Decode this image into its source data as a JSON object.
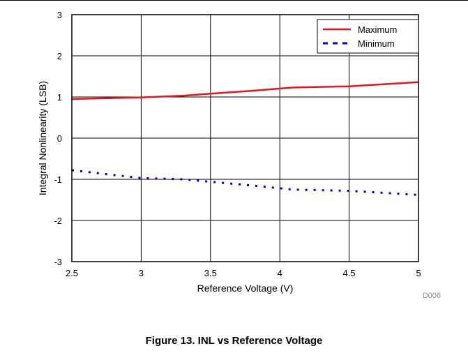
{
  "caption": "Figure 13. INL vs Reference Voltage",
  "chart_data": {
    "type": "line",
    "xlabel": "Reference Voltage (V)",
    "ylabel": "Integral Nonlinearity (LSB)",
    "xlim": [
      2.5,
      5
    ],
    "ylim": [
      -3,
      3
    ],
    "xticks": [
      2.5,
      3,
      3.5,
      4,
      4.5,
      5
    ],
    "xtick_labels": [
      "2.5",
      "3",
      "3.5",
      "4",
      "4.5",
      "5"
    ],
    "yticks": [
      -3,
      -2,
      -1,
      0,
      1,
      2,
      3
    ],
    "ytick_labels": [
      "-3",
      "-2",
      "-1",
      "0",
      "1",
      "2",
      "3"
    ],
    "grid": true,
    "legend_position": "top-right",
    "series": [
      {
        "name": "Maximum",
        "color": "#e8141b",
        "style": "solid",
        "x": [
          2.5,
          3.0,
          3.3,
          3.5,
          3.8,
          4.1,
          4.5,
          5.0
        ],
        "y": [
          0.95,
          0.99,
          1.03,
          1.08,
          1.15,
          1.23,
          1.26,
          1.36
        ]
      },
      {
        "name": "Minimum",
        "color": "#0000cc",
        "style": "dotted",
        "x": [
          2.5,
          3.0,
          3.3,
          3.5,
          3.8,
          4.1,
          4.5,
          5.0
        ],
        "y": [
          -0.78,
          -0.97,
          -1.0,
          -1.06,
          -1.15,
          -1.25,
          -1.28,
          -1.38
        ]
      }
    ],
    "annotation": "D006"
  }
}
